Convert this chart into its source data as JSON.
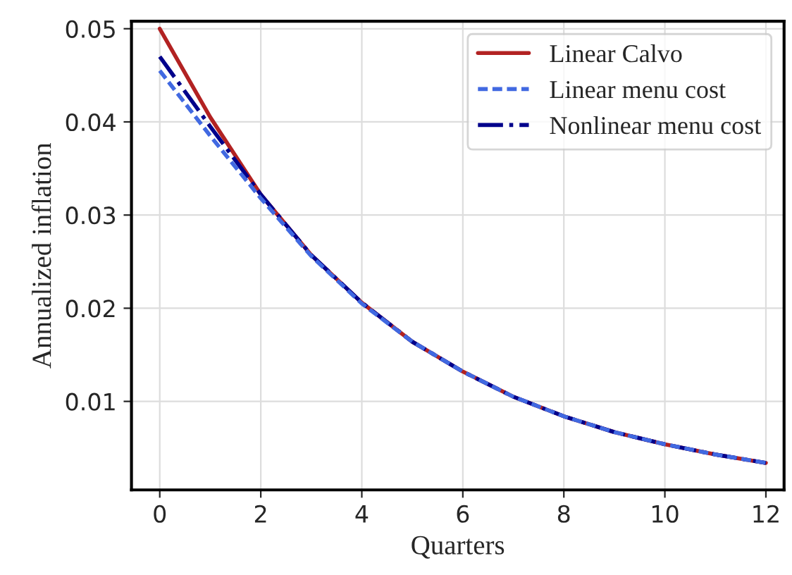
{
  "chart_data": {
    "type": "line",
    "xlabel": "Quarters",
    "ylabel": "Annualized inflation",
    "x": [
      0,
      1,
      2,
      3,
      4,
      5,
      6,
      7,
      8,
      9,
      10,
      11,
      12
    ],
    "series": [
      {
        "name": "Linear Calvo",
        "color": "#b22222",
        "line_style": "solid",
        "values": [
          0.05,
          0.0405,
          0.0322,
          0.0257,
          0.0206,
          0.0164,
          0.0132,
          0.0105,
          0.0084,
          0.0067,
          0.0054,
          0.0043,
          0.0034
        ]
      },
      {
        "name": "Linear menu cost",
        "color": "#4169e1",
        "line_style": "dashed",
        "values": [
          0.0455,
          0.0385,
          0.0318,
          0.0256,
          0.0205,
          0.0164,
          0.0132,
          0.0105,
          0.0084,
          0.0067,
          0.0054,
          0.0043,
          0.0034
        ]
      },
      {
        "name": "Nonlinear menu cost",
        "color": "#00008b",
        "line_style": "dashdot",
        "values": [
          0.047,
          0.0395,
          0.0322,
          0.0257,
          0.0206,
          0.0164,
          0.0132,
          0.0105,
          0.0084,
          0.0067,
          0.0054,
          0.0043,
          0.0034
        ]
      }
    ],
    "xlim": [
      -0.56,
      12.36
    ],
    "ylim": [
      0.0005,
      0.0508
    ],
    "xticks": [
      0,
      2,
      4,
      6,
      8,
      10,
      12
    ],
    "yticks": [
      0.01,
      0.02,
      0.03,
      0.04,
      0.05
    ],
    "grid": true,
    "legend": "top right"
  }
}
